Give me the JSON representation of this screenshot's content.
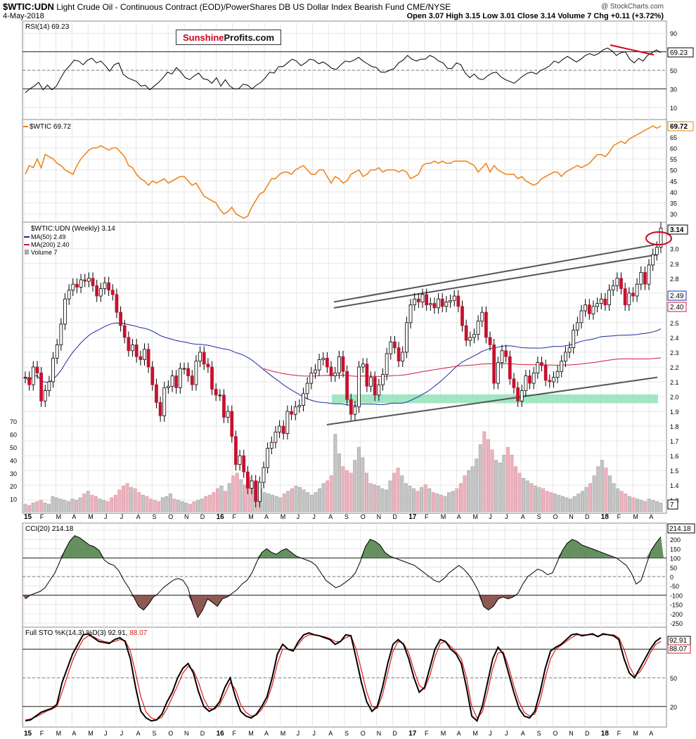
{
  "header": {
    "symbol": "$WTIC:UDN",
    "description": "Light Crude Oil - Continuous Contract (EOD)/PowerShares DB US Dollar Index Bearish Fund CME/NYSE",
    "date": "4-May-2018",
    "ohlc": "Open 3.07  High 3.15  Low 3.01  Close 3.14  Volume 7  Chg +0.11 (+3.72%)",
    "watermark": "@ StockCharts.com"
  },
  "logo": {
    "part1": "Sunshine",
    "part2": "Profits.com"
  },
  "colors": {
    "candle_up": "#ffffff",
    "candle_down": "#c8102e",
    "rsi": "#000000",
    "wtic": "#f07f12",
    "ma50": "#1e2b9f",
    "ma200": "#d0193a",
    "support_zone": "#8be0b4",
    "annotation": "#d0021b",
    "cci_pos": "#4b7d44",
    "cci_neg": "#7a3b35",
    "sto_k": "#000000",
    "sto_d": "#e01b1b"
  },
  "x_labels": [
    "15",
    "F",
    "M",
    "A",
    "M",
    "J",
    "J",
    "A",
    "S",
    "O",
    "N",
    "D",
    "16",
    "F",
    "M",
    "A",
    "M",
    "J",
    "J",
    "A",
    "S",
    "O",
    "N",
    "D",
    "17",
    "F",
    "M",
    "A",
    "M",
    "J",
    "J",
    "A",
    "S",
    "O",
    "N",
    "D",
    "18",
    "F",
    "M",
    "A"
  ],
  "bold_x_labels": [
    "15",
    "16",
    "17",
    "18"
  ],
  "chart_data": [
    {
      "type": "line",
      "title": "RSI(14) 69.23",
      "last_value_label": "69.23",
      "yticks": [
        "90",
        "70",
        "50",
        "30",
        "10"
      ],
      "ylim": [
        0,
        100
      ],
      "levels": [
        70,
        50,
        30
      ],
      "values": [
        26,
        30,
        33,
        37,
        29,
        34,
        29,
        33,
        42,
        50,
        55,
        61,
        60,
        56,
        61,
        63,
        58,
        60,
        55,
        49,
        56,
        58,
        46,
        42,
        40,
        38,
        33,
        34,
        29,
        33,
        37,
        42,
        48,
        46,
        53,
        48,
        42,
        40,
        44,
        47,
        41,
        40,
        36,
        42,
        33,
        40,
        33,
        30,
        30,
        35,
        34,
        30,
        34,
        37,
        42,
        48,
        47,
        54,
        54,
        58,
        62,
        60,
        55,
        58,
        62,
        61,
        57,
        59,
        56,
        52,
        51,
        56,
        60,
        59,
        61,
        64,
        60,
        57,
        54,
        53,
        48,
        48,
        50,
        52,
        58,
        61,
        66,
        62,
        60,
        62,
        62,
        66,
        64,
        60,
        58,
        52,
        52,
        58,
        56,
        47,
        42,
        46,
        41,
        40,
        44,
        47,
        48,
        43,
        40,
        38,
        36,
        40,
        44,
        47,
        48,
        46,
        50,
        52,
        55,
        60,
        58,
        62,
        65,
        62,
        59,
        62,
        66,
        68,
        66,
        68,
        72,
        74,
        71,
        66,
        69,
        70,
        62,
        58,
        63,
        60,
        66,
        69,
        72,
        69
      ]
    },
    {
      "type": "line",
      "title": "$WTIC 69.72",
      "last_value_label": "69.72",
      "yticks": [
        "65",
        "60",
        "55",
        "50",
        "45",
        "40",
        "35",
        "30"
      ],
      "ylim": [
        27.5,
        71
      ],
      "values": [
        48,
        52,
        51,
        55,
        51,
        57,
        56,
        55,
        53,
        52,
        50,
        49,
        48,
        52,
        55,
        57,
        59,
        60,
        60,
        61,
        60,
        59,
        60,
        60,
        58,
        56,
        52,
        51,
        48,
        46,
        45,
        43,
        45,
        44,
        45,
        46,
        44,
        45,
        46,
        47,
        47,
        45,
        43,
        44,
        41,
        38,
        37,
        36,
        35,
        32,
        30,
        31,
        33,
        30,
        29,
        28,
        29,
        33,
        36,
        39,
        40,
        43,
        46,
        46,
        48,
        49,
        49,
        48,
        50,
        51,
        52,
        50,
        48,
        48,
        50,
        50,
        47,
        44,
        47,
        46,
        44,
        45,
        48,
        49,
        50,
        47,
        48,
        50,
        50,
        51,
        49,
        50,
        50,
        50,
        49,
        50,
        49,
        46,
        47,
        48,
        52,
        53,
        53,
        54,
        53,
        54,
        53,
        53,
        54,
        54,
        54,
        54,
        53,
        52,
        49,
        51,
        53,
        49,
        52,
        50,
        49,
        48,
        48,
        48,
        46,
        47,
        45,
        44,
        43,
        44,
        46,
        47,
        48,
        49,
        49,
        47,
        49,
        50,
        51,
        52,
        51,
        52,
        53,
        55,
        57,
        57,
        56,
        58,
        61,
        62,
        63,
        62,
        64,
        65,
        66,
        67,
        68,
        69,
        70,
        69,
        70
      ]
    },
    {
      "type": "candlestick",
      "title": "$WTIC:UDN (Weekly) 3.14",
      "legend": [
        "MA(50) 2.49",
        "MA(200) 2.40",
        "Volume 7"
      ],
      "last_value_label": "3.14",
      "ma50_label": "2.49",
      "ma200_label": "2.40",
      "yticks": [
        "3.0",
        "2.9",
        "2.8",
        "2.7",
        "2.6",
        "2.5",
        "2.4",
        "2.3",
        "2.2",
        "2.1",
        "2.0",
        "1.9",
        "1.8",
        "1.7",
        "1.6",
        "1.5",
        "1.4",
        "1.3"
      ],
      "ylim": [
        1.22,
        3.17
      ],
      "close": [
        2.13,
        2.08,
        2.2,
        2.16,
        1.97,
        2.04,
        2.1,
        2.26,
        2.35,
        2.49,
        2.66,
        2.72,
        2.76,
        2.74,
        2.79,
        2.78,
        2.8,
        2.75,
        2.68,
        2.73,
        2.77,
        2.72,
        2.69,
        2.57,
        2.48,
        2.4,
        2.31,
        2.35,
        2.27,
        2.25,
        2.32,
        2.2,
        2.08,
        1.96,
        1.87,
        2.06,
        2.07,
        2.14,
        2.06,
        2.19,
        2.19,
        2.14,
        2.08,
        2.24,
        2.3,
        2.22,
        2.2,
        2.05,
        2.01,
        2.01,
        1.86,
        1.9,
        1.73,
        1.54,
        1.6,
        1.49,
        1.38,
        1.43,
        1.29,
        1.42,
        1.52,
        1.65,
        1.69,
        1.76,
        1.8,
        1.75,
        1.9,
        1.88,
        1.93,
        1.94,
        2.02,
        2.09,
        2.16,
        2.18,
        2.25,
        2.26,
        2.2,
        2.14,
        2.16,
        2.27,
        2.17,
        1.98,
        1.88,
        1.93,
        2.2,
        2.22,
        2.07,
        2.13,
        2.01,
        2.08,
        2.15,
        2.29,
        2.37,
        2.33,
        2.24,
        2.3,
        2.5,
        2.62,
        2.66,
        2.64,
        2.69,
        2.62,
        2.63,
        2.6,
        2.66,
        2.61,
        2.64,
        2.65,
        2.68,
        2.61,
        2.48,
        2.38,
        2.4,
        2.42,
        2.51,
        2.57,
        2.4,
        2.35,
        2.09,
        2.23,
        2.31,
        2.27,
        2.12,
        2.06,
        1.97,
        2.04,
        2.14,
        2.09,
        2.16,
        2.23,
        2.21,
        2.11,
        2.1,
        2.13,
        2.17,
        2.24,
        2.3,
        2.33,
        2.45,
        2.5,
        2.58,
        2.62,
        2.56,
        2.61,
        2.63,
        2.66,
        2.62,
        2.72,
        2.75,
        2.8,
        2.73,
        2.62,
        2.7,
        2.68,
        2.76,
        2.84,
        2.76,
        2.89,
        2.96,
        3.01,
        3.14
      ]
    },
    {
      "type": "bar",
      "title": "Volume 7",
      "last_value_label": "7",
      "yticks": [
        "70",
        "60",
        "50",
        "40",
        "30",
        "20",
        "10"
      ],
      "ylim": [
        0,
        75
      ],
      "values": [
        6,
        5,
        7,
        8,
        9,
        7,
        6,
        12,
        11,
        10,
        9,
        8,
        10,
        9,
        11,
        14,
        16,
        13,
        12,
        10,
        9,
        8,
        11,
        13,
        17,
        20,
        22,
        19,
        18,
        15,
        13,
        12,
        10,
        9,
        8,
        11,
        12,
        14,
        10,
        9,
        8,
        7,
        6,
        8,
        9,
        10,
        12,
        13,
        15,
        18,
        20,
        16,
        22,
        28,
        30,
        25,
        21,
        27,
        23,
        24,
        18,
        15,
        14,
        13,
        12,
        11,
        14,
        16,
        18,
        20,
        19,
        17,
        15,
        13,
        15,
        18,
        22,
        24,
        28,
        60,
        45,
        35,
        32,
        30,
        40,
        50,
        42,
        30,
        22,
        21,
        20,
        18,
        17,
        24,
        30,
        34,
        28,
        22,
        20,
        18,
        16,
        19,
        21,
        18,
        15,
        14,
        13,
        12,
        15,
        16,
        18,
        22,
        28,
        32,
        35,
        41,
        52,
        62,
        56,
        48,
        40,
        38,
        44,
        50,
        44,
        35,
        30,
        26,
        24,
        22,
        20,
        19,
        18,
        16,
        15,
        14,
        13,
        12,
        11,
        10,
        12,
        14,
        16,
        19,
        22,
        28,
        35,
        40,
        34,
        28,
        22,
        18,
        16,
        14,
        12,
        11,
        10,
        9,
        8,
        10,
        9,
        8,
        7
      ]
    },
    {
      "type": "area",
      "title": "CCI(20) 214.18",
      "last_value_label": "214.18",
      "yticks": [
        "250",
        "200",
        "150",
        "100",
        "50",
        "0",
        "-50",
        "-100",
        "-150",
        "-200",
        "-250"
      ],
      "ylim": [
        -265,
        265
      ],
      "levels": [
        100,
        0,
        -100
      ],
      "values": [
        -120,
        -100,
        -90,
        -80,
        -60,
        -20,
        20,
        80,
        140,
        190,
        220,
        210,
        190,
        170,
        160,
        140,
        90,
        70,
        60,
        30,
        -20,
        -60,
        -110,
        -160,
        -180,
        -150,
        -110,
        -90,
        -60,
        -40,
        -20,
        -10,
        -20,
        -60,
        -150,
        -220,
        -180,
        -120,
        -140,
        -160,
        -120,
        -110,
        -90,
        -70,
        -40,
        -20,
        20,
        80,
        130,
        150,
        130,
        120,
        140,
        150,
        130,
        110,
        100,
        90,
        80,
        60,
        20,
        -20,
        -40,
        -60,
        -50,
        -30,
        -10,
        20,
        80,
        160,
        200,
        190,
        170,
        130,
        110,
        100,
        90,
        80,
        70,
        60,
        40,
        20,
        0,
        -20,
        -30,
        -10,
        20,
        40,
        60,
        40,
        10,
        -30,
        -80,
        -160,
        -180,
        -160,
        -120,
        -110,
        -120,
        -110,
        -90,
        -40,
        0,
        20,
        40,
        30,
        10,
        20,
        80,
        140,
        180,
        200,
        190,
        170,
        160,
        150,
        140,
        130,
        120,
        110,
        100,
        80,
        60,
        20,
        -40,
        -20,
        60,
        140,
        180,
        214
      ]
    },
    {
      "type": "line",
      "title": "Full STO %K(14,3) %D(3) 92.91, 88.07",
      "title_prefix": "Full STO %K(14,3) %D(3) 92.91,",
      "title_d": "88.07",
      "last_k_label": "92.91",
      "last_d_label": "88.07",
      "yticks": [
        "80",
        "50",
        "20"
      ],
      "ylim": [
        0,
        100
      ],
      "levels": [
        80,
        50,
        20
      ],
      "series": [
        {
          "name": "%K",
          "values": [
            5,
            6,
            10,
            14,
            16,
            18,
            22,
            45,
            60,
            75,
            85,
            95,
            96,
            92,
            88,
            87,
            86,
            90,
            92,
            88,
            70,
            40,
            15,
            8,
            5,
            6,
            12,
            25,
            35,
            50,
            60,
            65,
            55,
            35,
            20,
            15,
            18,
            25,
            40,
            50,
            30,
            15,
            10,
            8,
            12,
            20,
            30,
            50,
            75,
            85,
            80,
            78,
            88,
            95,
            97,
            95,
            94,
            92,
            90,
            85,
            88,
            95,
            94,
            70,
            45,
            25,
            15,
            20,
            40,
            65,
            85,
            90,
            85,
            70,
            50,
            35,
            40,
            60,
            80,
            90,
            88,
            80,
            75,
            65,
            40,
            10,
            5,
            20,
            45,
            70,
            82,
            75,
            55,
            35,
            18,
            10,
            8,
            15,
            35,
            60,
            78,
            82,
            85,
            90,
            95,
            96,
            94,
            95,
            96,
            93,
            96,
            95,
            94,
            90,
            70,
            55,
            50,
            60,
            70,
            80,
            88,
            92
          ]
        },
        {
          "name": "%D",
          "values": [
            6,
            7,
            9,
            12,
            15,
            17,
            20,
            35,
            52,
            68,
            80,
            90,
            94,
            93,
            90,
            88,
            87,
            88,
            90,
            89,
            78,
            55,
            30,
            14,
            8,
            6,
            9,
            18,
            30,
            42,
            55,
            62,
            58,
            45,
            28,
            18,
            17,
            22,
            33,
            45,
            38,
            22,
            14,
            10,
            11,
            17,
            26,
            42,
            65,
            80,
            80,
            79,
            85,
            92,
            95,
            95,
            94,
            93,
            91,
            88,
            88,
            92,
            94,
            80,
            58,
            35,
            20,
            18,
            32,
            55,
            78,
            88,
            86,
            76,
            58,
            42,
            38,
            52,
            72,
            86,
            88,
            83,
            77,
            70,
            50,
            20,
            8,
            14,
            35,
            60,
            76,
            77,
            62,
            42,
            25,
            14,
            10,
            12,
            26,
            50,
            70,
            80,
            84,
            88,
            92,
            95,
            95,
            95,
            95,
            94,
            95,
            95,
            95,
            92,
            80,
            62,
            52,
            56,
            65,
            76,
            85,
            88
          ]
        }
      ]
    }
  ]
}
